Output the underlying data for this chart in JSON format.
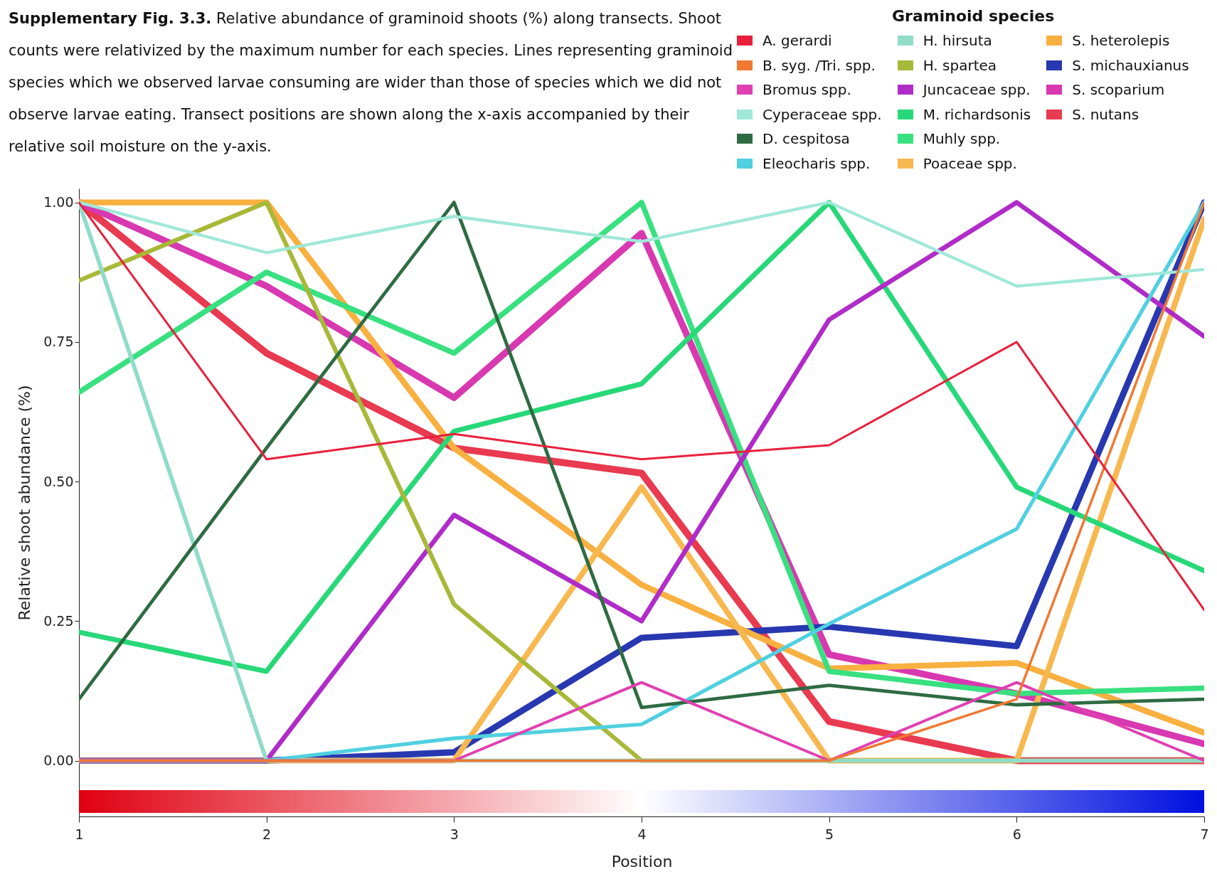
{
  "chart_data": {
    "type": "line",
    "title": "Supplementary Fig. 3.3.",
    "subtitle": "Relative abundance of graminoid shoots (%) along transects. Shoot counts were relativized by the maximum number for each species. Lines representing graminoid species which we observed larvae consuming are wider than those of species which we did not observe larvae eating. Transect positions are shown along the x-axis accompanied by their relative soil moisture on the y-axis.",
    "xlabel": "Position",
    "ylabel": "Relative shoot abundance (%)",
    "legend_title": "Graminoid species",
    "legend": "top right",
    "grid": false,
    "marker": "none",
    "line_style": "solid",
    "x": [
      1,
      2,
      3,
      4,
      5,
      6,
      7
    ],
    "xlim": [
      1,
      7
    ],
    "xticks": [
      1,
      2,
      3,
      4,
      5,
      6,
      7
    ],
    "ylim": [
      -0.1,
      1.025
    ],
    "yticks": [
      {
        "value": 0,
        "label": "0.00"
      },
      {
        "value": 0.25,
        "label": "0.25"
      },
      {
        "value": 0.5,
        "label": "0.50"
      },
      {
        "value": 0.75,
        "label": "0.75"
      },
      {
        "value": 1,
        "label": "1.00"
      }
    ],
    "series": [
      {
        "name": "A. gerardi",
        "color": "#e8203c",
        "values": [
          1.0,
          0.54,
          0.585,
          0.54,
          0.565,
          0.75,
          0.27
        ]
      },
      {
        "name": "B. syg. /Tri. spp.",
        "color": "#f07830",
        "values": [
          0,
          0,
          0,
          0,
          0,
          0.11,
          1.0
        ]
      },
      {
        "name": "Bromus spp.",
        "color": "#e040b0",
        "values": [
          0,
          0,
          0,
          0.14,
          0,
          0.14,
          0
        ]
      },
      {
        "name": "Cyperaceae spp.",
        "color": "#a0e8d8",
        "values": [
          1.0,
          0.91,
          0.975,
          0.93,
          1.0,
          0.85,
          0.88
        ]
      },
      {
        "name": "D. cespitosa",
        "color": "#2e6b42",
        "values": [
          0.11,
          0.56,
          1.0,
          0.095,
          0.135,
          0.1,
          0.11
        ]
      },
      {
        "name": "Eleocharis spp.",
        "color": "#50d0e0",
        "values": [
          0,
          0,
          0.04,
          0.065,
          0.245,
          0.415,
          1.0
        ]
      },
      {
        "name": "H. hirsuta",
        "color": "#90dcc8",
        "values": [
          1.0,
          0,
          0,
          0,
          0,
          0,
          0
        ]
      },
      {
        "name": "H. spartea",
        "color": "#a8b838",
        "values": [
          0.86,
          1.0,
          0.28,
          0,
          0,
          0,
          0
        ]
      },
      {
        "name": "Juncaceae spp.",
        "color": "#b02cc8",
        "values": [
          0,
          0,
          0.44,
          0.25,
          0.79,
          1.0,
          0.76
        ]
      },
      {
        "name": "M. richardsonis",
        "color": "#28d878",
        "values": [
          0.23,
          0.16,
          0.59,
          0.675,
          1.0,
          0.49,
          0.34
        ]
      },
      {
        "name": "Muhly spp.",
        "color": "#38e080",
        "values": [
          0.66,
          0.875,
          0.73,
          1.0,
          0.16,
          0.12,
          0.13
        ]
      },
      {
        "name": "Poaceae spp.",
        "color": "#f8b850",
        "values": [
          0,
          0,
          0,
          0.49,
          0,
          0,
          0.97
        ]
      },
      {
        "name": "S. heterolepis",
        "color": "#f8b040",
        "values": [
          1.0,
          1.0,
          0.56,
          0.315,
          0.165,
          0.175,
          0.05
        ]
      },
      {
        "name": "S. michauxianus",
        "color": "#2838b0",
        "values": [
          0,
          0,
          0.015,
          0.22,
          0.24,
          0.205,
          1.0
        ]
      },
      {
        "name": "S. scoparium",
        "color": "#d838b0",
        "values": [
          1.0,
          0.85,
          0.65,
          0.945,
          0.19,
          0.12,
          0.03
        ]
      },
      {
        "name": "S. nutans",
        "color": "#e83a50",
        "values": [
          1.0,
          0.73,
          0.56,
          0.515,
          0.07,
          0,
          0
        ]
      }
    ]
  }
}
